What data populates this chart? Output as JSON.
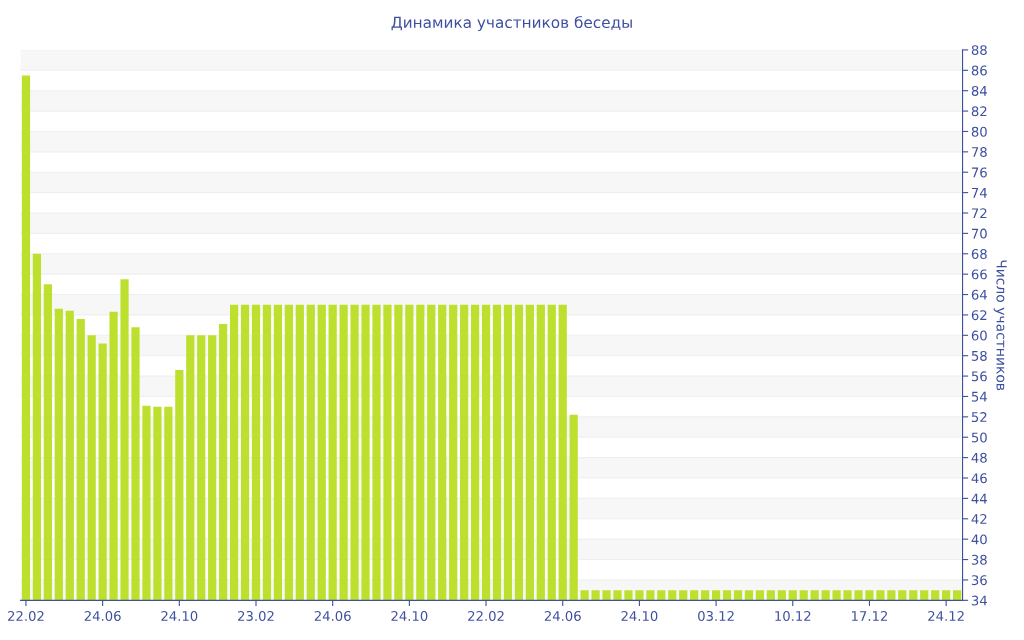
{
  "chart_data": {
    "type": "bar",
    "title": "Динамика участников беседы",
    "ylabel": "Число участников",
    "categories": [
      "22.02",
      null,
      null,
      null,
      null,
      null,
      null,
      "24.06",
      null,
      null,
      null,
      null,
      null,
      null,
      "24.10",
      null,
      null,
      null,
      null,
      null,
      null,
      "23.02",
      null,
      null,
      null,
      null,
      null,
      null,
      "24.06",
      null,
      null,
      null,
      null,
      null,
      null,
      "24.10",
      null,
      null,
      null,
      null,
      null,
      null,
      "22.02",
      null,
      null,
      null,
      null,
      null,
      null,
      "24.06",
      null,
      null,
      null,
      null,
      null,
      null,
      "24.10",
      null,
      null,
      null,
      null,
      null,
      null,
      "03.12",
      null,
      null,
      null,
      null,
      null,
      null,
      "10.12",
      null,
      null,
      null,
      null,
      null,
      null,
      "17.12",
      null,
      null,
      null,
      null,
      null,
      null,
      "24.12",
      null
    ],
    "values": [
      85.5,
      68,
      65,
      62.6,
      62.4,
      61.6,
      60,
      59.2,
      62.3,
      65.5,
      60.8,
      53.1,
      53,
      53,
      56.6,
      60,
      60,
      60,
      61.1,
      63,
      63,
      63,
      63,
      63,
      63,
      63,
      63,
      63,
      63,
      63,
      63,
      63,
      63,
      63,
      63,
      63,
      63,
      63,
      63,
      63,
      63,
      63,
      63,
      63,
      63,
      63,
      63,
      63,
      63,
      63,
      52.2,
      35,
      35,
      35,
      35,
      35,
      35,
      35,
      35,
      35,
      35,
      35,
      35,
      35,
      35,
      35,
      35,
      35,
      35,
      35,
      35,
      35,
      35,
      35,
      35,
      35,
      35,
      35,
      35,
      35,
      35,
      35,
      35,
      35,
      35,
      35
    ],
    "color": "#bde02e",
    "ylim": [
      34,
      88
    ],
    "yticks": [
      34,
      36,
      38,
      40,
      42,
      44,
      46,
      48,
      50,
      52,
      54,
      56,
      58,
      60,
      62,
      64,
      66,
      68,
      70,
      72,
      74,
      76,
      78,
      80,
      82,
      84,
      86,
      88
    ],
    "grid": "y",
    "legend": false
  }
}
